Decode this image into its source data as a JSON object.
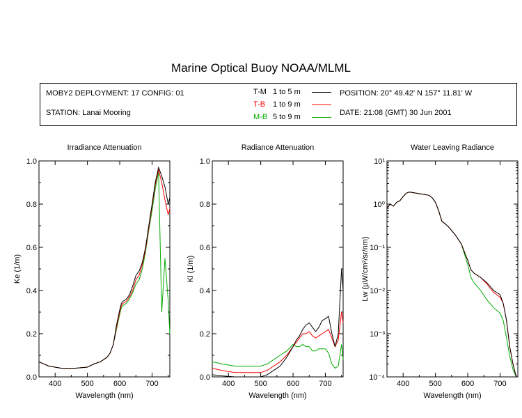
{
  "title": "Marine Optical Buoy NOAA/MLML",
  "info": {
    "deployment": "MOBY2 DEPLOYMENT: 17 CONFIG: 01",
    "station": "STATION: Lanai Mooring",
    "position": "POSITION: 20° 49.42' N   157° 11.81' W",
    "date": "DATE: 21:08 (GMT) 30 Jun 2001",
    "legend": [
      {
        "code": "T-M",
        "range": "1 to 5  m",
        "color": "#000000"
      },
      {
        "code": "T-B",
        "range": "1 to 9  m",
        "color": "#ff0000"
      },
      {
        "code": "M-B",
        "range": "5 to 9  m",
        "color": "#00aa00"
      }
    ]
  },
  "chart_data": [
    {
      "type": "line",
      "title": "Irradiance Attenuation",
      "xlabel": "Wavelength (nm)",
      "ylabel": "Ke  (1/m)",
      "xlim": [
        350,
        755
      ],
      "ylim": [
        0,
        1.0
      ],
      "xticks": [
        400,
        500,
        600,
        700
      ],
      "yticks": [
        0.0,
        0.2,
        0.4,
        0.6,
        0.8,
        1.0
      ],
      "ytick_labels": [
        "0.0",
        "0.2",
        "0.4",
        "0.6",
        "0.8",
        "1.0"
      ],
      "x": [
        350,
        380,
        420,
        460,
        500,
        520,
        540,
        560,
        570,
        580,
        590,
        600,
        605,
        610,
        620,
        630,
        640,
        650,
        660,
        670,
        680,
        690,
        700,
        710,
        720,
        730,
        740,
        750,
        755
      ],
      "series": [
        {
          "name": "T-M",
          "color": "#000000",
          "values": [
            0.07,
            0.05,
            0.04,
            0.04,
            0.045,
            0.06,
            0.07,
            0.09,
            0.11,
            0.15,
            0.24,
            0.31,
            0.34,
            0.35,
            0.36,
            0.38,
            0.42,
            0.47,
            0.49,
            0.53,
            0.6,
            0.7,
            0.8,
            0.9,
            0.97,
            0.93,
            0.88,
            0.8,
            0.83
          ]
        },
        {
          "name": "T-B",
          "color": "#ff0000",
          "values": [
            0.07,
            0.05,
            0.04,
            0.04,
            0.045,
            0.06,
            0.07,
            0.09,
            0.11,
            0.15,
            0.23,
            0.3,
            0.33,
            0.34,
            0.35,
            0.37,
            0.4,
            0.45,
            0.47,
            0.52,
            0.59,
            0.69,
            0.79,
            0.89,
            0.96,
            0.9,
            0.82,
            0.75,
            0.78
          ]
        },
        {
          "name": "M-B",
          "color": "#00aa00",
          "values": [
            0.07,
            0.05,
            0.04,
            0.04,
            0.045,
            0.06,
            0.07,
            0.09,
            0.11,
            0.15,
            0.22,
            0.29,
            0.32,
            0.33,
            0.34,
            0.36,
            0.39,
            0.43,
            0.45,
            0.5,
            0.58,
            0.68,
            0.77,
            0.87,
            0.95,
            0.3,
            0.55,
            0.35,
            0.2
          ]
        }
      ]
    },
    {
      "type": "line",
      "title": "Radiance Attenuation",
      "xlabel": "Wavelength (nm)",
      "ylabel": "Kl  (1/m)",
      "xlim": [
        350,
        755
      ],
      "ylim": [
        0,
        1.0
      ],
      "xticks": [
        400,
        500,
        600,
        700
      ],
      "yticks": [
        0.0,
        0.2,
        0.4,
        0.6,
        0.8,
        1.0
      ],
      "ytick_labels": [
        "0.0",
        "0.2",
        "0.4",
        "0.6",
        "0.8",
        "1.0"
      ],
      "x": [
        350,
        380,
        420,
        460,
        500,
        520,
        540,
        560,
        580,
        600,
        610,
        620,
        630,
        640,
        650,
        660,
        670,
        680,
        690,
        700,
        710,
        720,
        730,
        740,
        750,
        755
      ],
      "series": [
        {
          "name": "T-M",
          "color": "#000000",
          "values": [
            0.01,
            0.005,
            0.0,
            0.0,
            0.0,
            0.01,
            0.03,
            0.05,
            0.09,
            0.14,
            0.17,
            0.19,
            0.22,
            0.24,
            0.25,
            0.23,
            0.21,
            0.23,
            0.26,
            0.27,
            0.28,
            0.2,
            0.14,
            0.2,
            0.5,
            0.4
          ]
        },
        {
          "name": "T-B",
          "color": "#ff0000",
          "values": [
            0.04,
            0.03,
            0.02,
            0.02,
            0.02,
            0.03,
            0.05,
            0.07,
            0.1,
            0.14,
            0.16,
            0.18,
            0.2,
            0.2,
            0.21,
            0.19,
            0.18,
            0.19,
            0.2,
            0.21,
            0.22,
            0.18,
            0.14,
            0.17,
            0.3,
            0.25
          ]
        },
        {
          "name": "M-B",
          "color": "#00aa00",
          "values": [
            0.07,
            0.06,
            0.05,
            0.05,
            0.05,
            0.06,
            0.08,
            0.1,
            0.12,
            0.15,
            0.14,
            0.14,
            0.15,
            0.14,
            0.14,
            0.12,
            0.12,
            0.13,
            0.13,
            0.13,
            0.11,
            0.06,
            0.04,
            0.05,
            0.15,
            0.08
          ]
        }
      ]
    },
    {
      "type": "line",
      "title": "Water Leaving Radiance",
      "xlabel": "Wavelength (nm)",
      "ylabel": "Lw  (µW/cm²/sr/nm)",
      "xlim": [
        350,
        755
      ],
      "ylim": [
        0.0001,
        10
      ],
      "yscale": "log",
      "xticks": [
        400,
        500,
        600,
        700
      ],
      "yticks": [
        0.0001,
        0.001,
        0.01,
        0.1,
        1,
        10
      ],
      "ytick_labels": [
        "10⁻⁴",
        "10⁻³",
        "10⁻²",
        "10⁻¹",
        "10⁰",
        "10¹"
      ],
      "x": [
        350,
        360,
        370,
        380,
        390,
        400,
        410,
        420,
        440,
        460,
        480,
        490,
        500,
        510,
        520,
        530,
        540,
        560,
        580,
        600,
        610,
        620,
        640,
        660,
        680,
        700,
        710,
        720,
        730,
        740,
        750
      ],
      "series": [
        {
          "name": "T-M",
          "color": "#000000",
          "values": [
            0.8,
            1.0,
            0.9,
            1.1,
            1.2,
            1.5,
            1.8,
            1.9,
            1.8,
            1.7,
            1.6,
            1.4,
            1.1,
            0.7,
            0.4,
            0.35,
            0.3,
            0.2,
            0.12,
            0.05,
            0.03,
            0.025,
            0.02,
            0.015,
            0.01,
            0.008,
            0.005,
            0.002,
            0.0005,
            0.0002,
            0.0001
          ]
        },
        {
          "name": "T-B",
          "color": "#ff0000",
          "values": [
            0.8,
            1.0,
            0.9,
            1.1,
            1.2,
            1.5,
            1.8,
            1.9,
            1.8,
            1.7,
            1.6,
            1.4,
            1.1,
            0.7,
            0.4,
            0.35,
            0.3,
            0.2,
            0.12,
            0.05,
            0.03,
            0.025,
            0.02,
            0.014,
            0.009,
            0.007,
            0.005,
            0.002,
            0.0005,
            0.0002,
            0.0001
          ]
        },
        {
          "name": "M-B",
          "color": "#00aa00",
          "values": [
            0.8,
            1.0,
            0.9,
            1.1,
            1.2,
            1.5,
            1.8,
            1.9,
            1.8,
            1.7,
            1.6,
            1.4,
            1.1,
            0.7,
            0.4,
            0.35,
            0.3,
            0.2,
            0.12,
            0.04,
            0.02,
            0.015,
            0.01,
            0.006,
            0.004,
            0.003,
            0.002,
            0.0008,
            0.0003,
            0.00015,
            0.0001
          ]
        }
      ]
    }
  ]
}
